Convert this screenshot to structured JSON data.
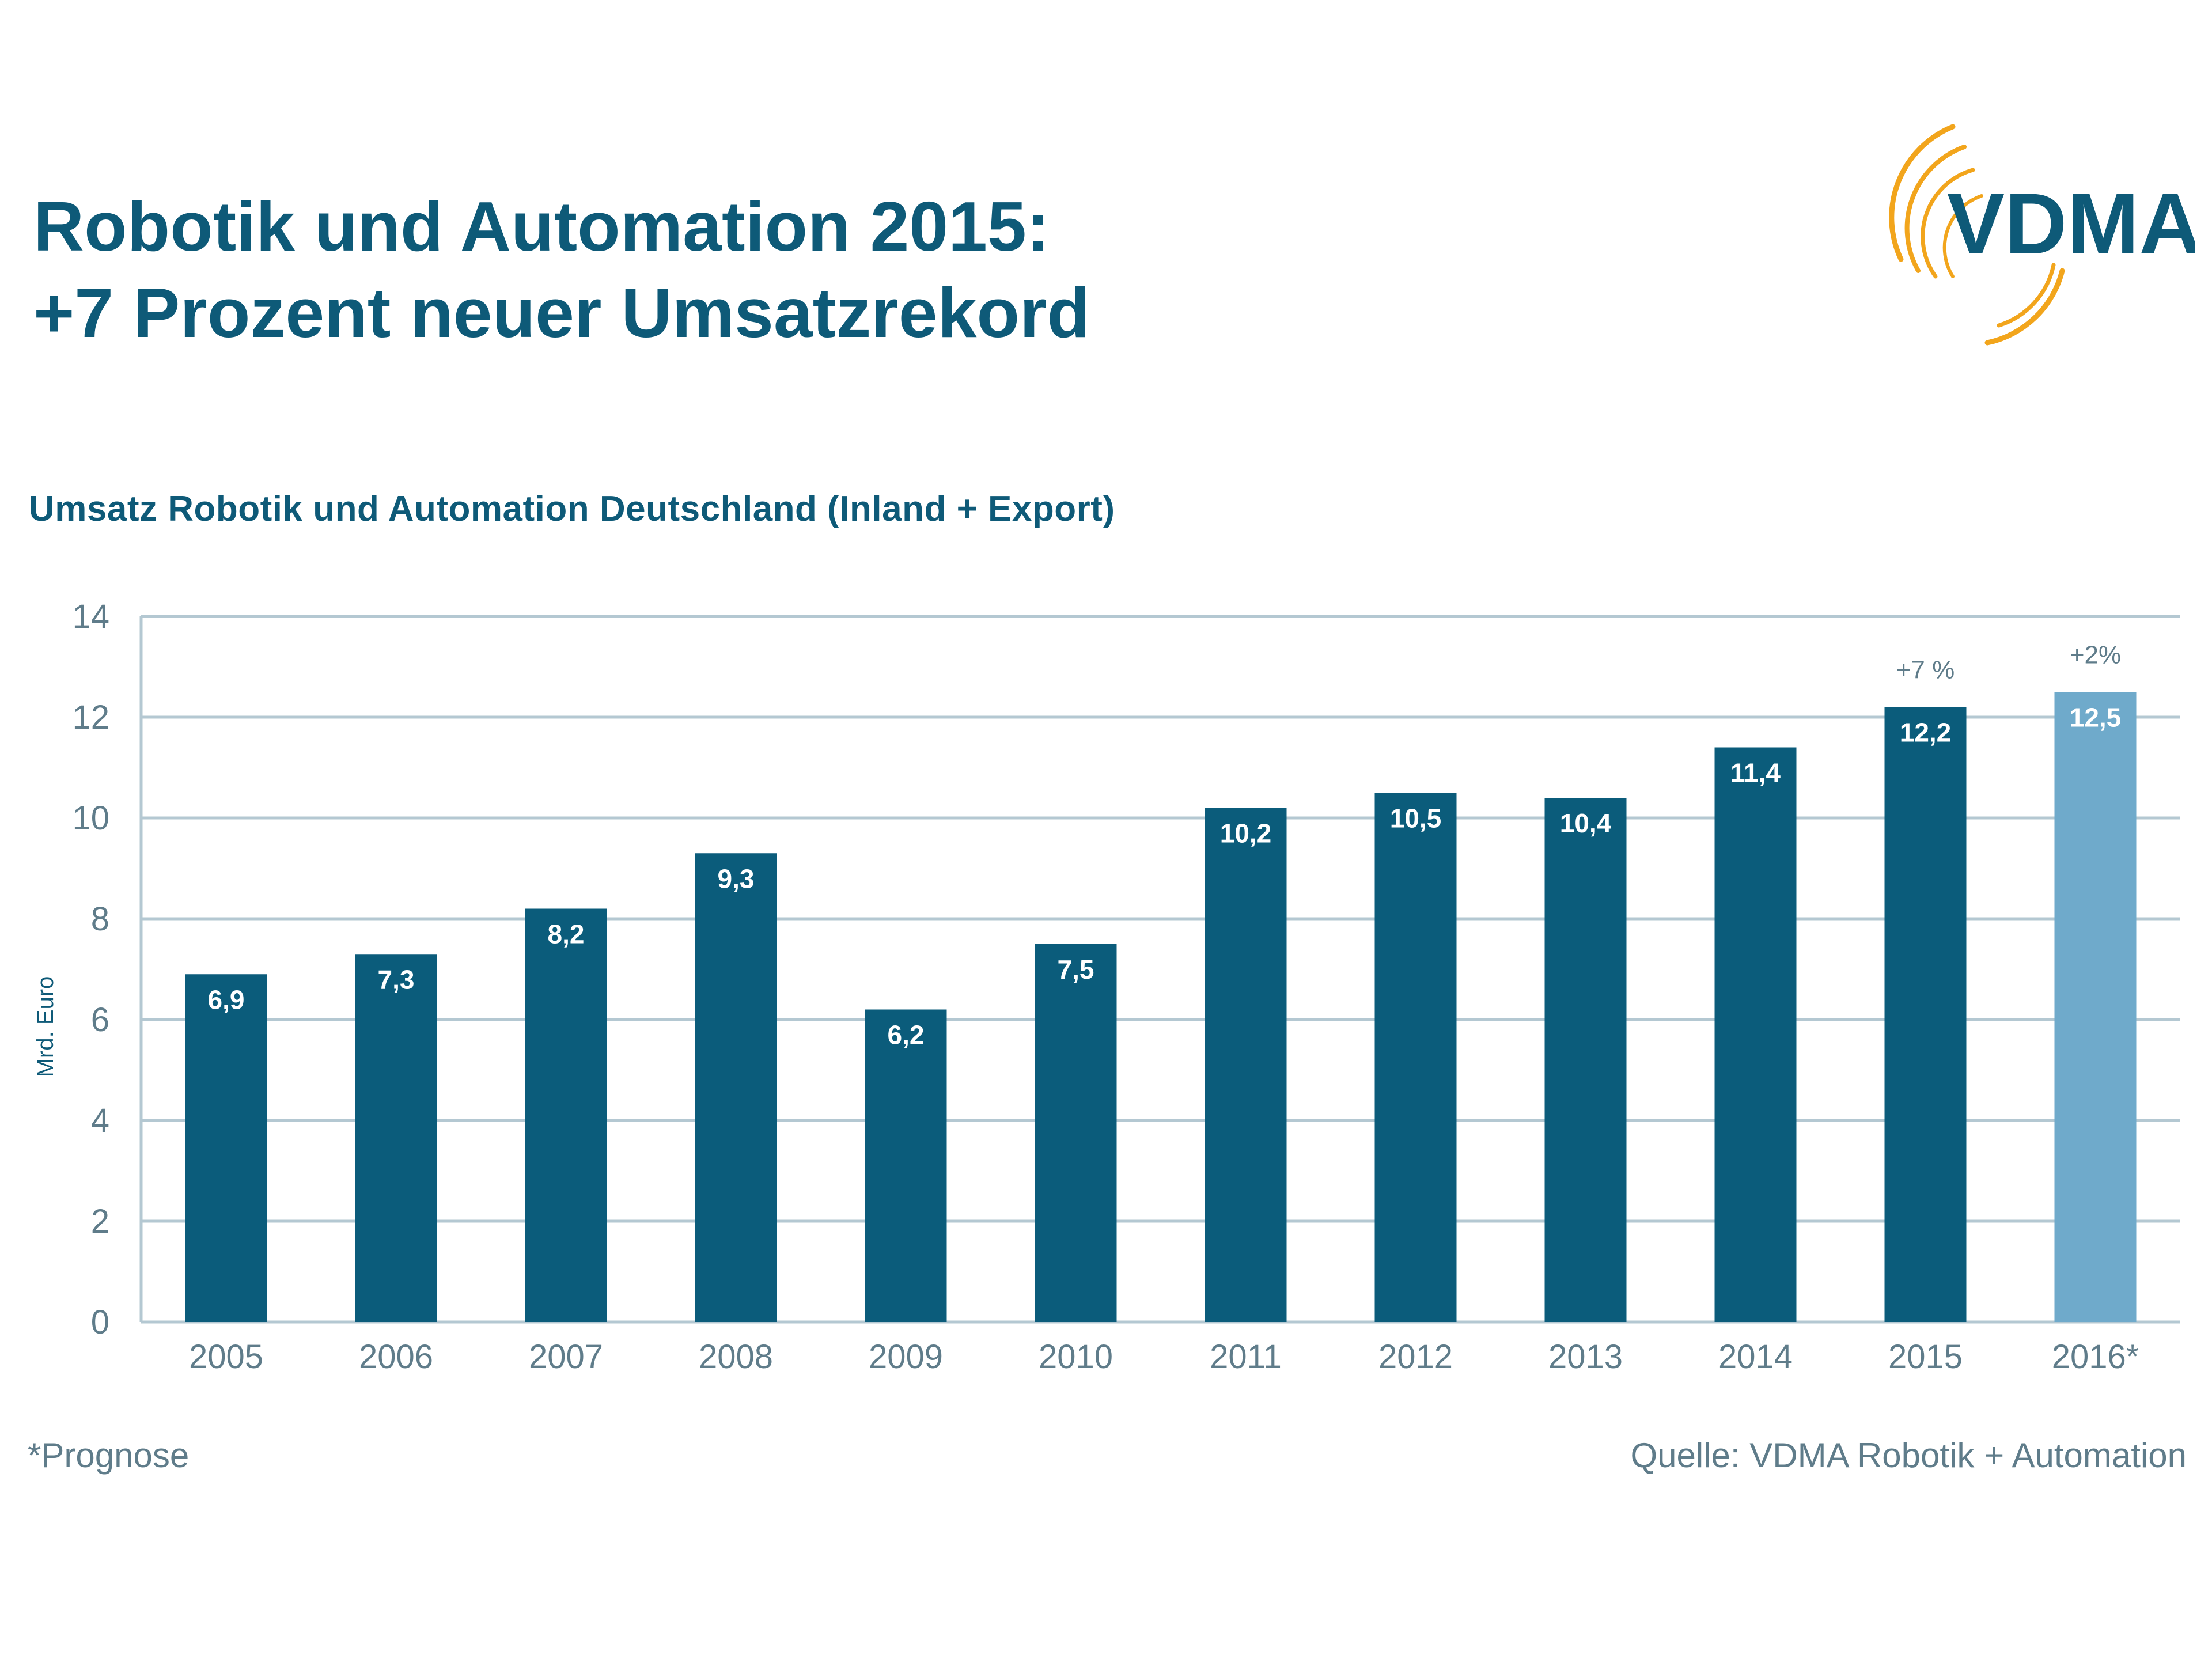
{
  "header": {
    "title_line1": "Robotik und Automation 2015:",
    "title_line2": "+7 Prozent neuer Umsatzrekord",
    "logo_text": "VDMA"
  },
  "colors": {
    "bar": "#0b5c7b",
    "bar_forecast": "#6faacb",
    "title": "#0e5a78",
    "grid": "#b4c8d2",
    "axis_text": "#5f7c8a",
    "logo_arc": "#f2a51c"
  },
  "chart_data": {
    "type": "bar",
    "title": "Umsatz Robotik und Automation Deutschland (Inland + Export)",
    "xlabel": "",
    "ylabel": "Mrd. Euro",
    "ylim": [
      0,
      14
    ],
    "yticks": [
      0,
      2,
      4,
      6,
      8,
      10,
      12,
      14
    ],
    "grid": true,
    "categories": [
      "2005",
      "2006",
      "2007",
      "2008",
      "2009",
      "2010",
      "2011",
      "2012",
      "2013",
      "2014",
      "2015",
      "2016*"
    ],
    "values": [
      6.9,
      7.3,
      8.2,
      9.3,
      6.2,
      7.5,
      10.2,
      10.5,
      10.4,
      11.4,
      12.2,
      12.5
    ],
    "value_labels": [
      "6,9",
      "7,3",
      "8,2",
      "9,3",
      "6,2",
      "7,5",
      "10,2",
      "10,5",
      "10,4",
      "11,4",
      "12,2",
      "12,5"
    ],
    "forecast": [
      false,
      false,
      false,
      false,
      false,
      false,
      false,
      false,
      false,
      false,
      false,
      true
    ],
    "annotations": [
      {
        "category": "2015",
        "text": "+7 %"
      },
      {
        "category": "2016*",
        "text": "+2%"
      }
    ]
  },
  "footer": {
    "footnote": "*Prognose",
    "source": "Quelle: VDMA Robotik + Automation"
  }
}
